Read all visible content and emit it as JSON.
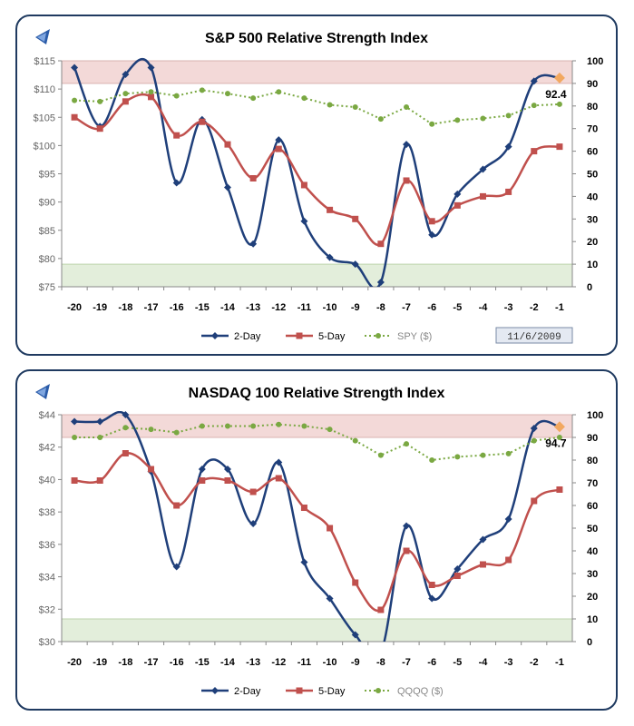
{
  "chart_data": [
    {
      "type": "line",
      "title": "S&P 500 Relative Strength Index",
      "categories": [
        "-20",
        "-19",
        "-18",
        "-17",
        "-16",
        "-15",
        "-14",
        "-13",
        "-12",
        "-11",
        "-10",
        "-9",
        "-8",
        "-7",
        "-6",
        "-5",
        "-4",
        "-3",
        "-2",
        "-1"
      ],
      "y_left_ticks": [
        "$75",
        "$80",
        "$85",
        "$90",
        "$95",
        "$100",
        "$105",
        "$110",
        "$115"
      ],
      "y_left_range": [
        75,
        115
      ],
      "y_right_ticks": [
        "0",
        "10",
        "20",
        "30",
        "40",
        "50",
        "60",
        "70",
        "80",
        "90",
        "100"
      ],
      "y_right_range": [
        0,
        100
      ],
      "overbought_band": [
        90,
        100
      ],
      "oversold_band": [
        0,
        10
      ],
      "series": [
        {
          "name": "2-Day",
          "axis": "right",
          "color": "#1f3f7a",
          "marker": "diamond",
          "values": [
            97,
            71,
            94,
            97,
            46,
            74,
            44,
            19,
            65,
            29,
            13,
            10,
            2,
            63,
            23,
            41,
            52,
            62,
            91,
            92.4
          ]
        },
        {
          "name": "5-Day",
          "axis": "right",
          "color": "#c0504d",
          "marker": "square",
          "values": [
            75,
            70,
            82,
            84,
            67,
            73,
            63,
            48,
            61,
            45,
            34,
            30,
            19,
            47,
            29,
            36,
            40,
            42,
            60,
            62
          ]
        },
        {
          "name": "SPY ($)",
          "axis": "left",
          "color": "#7aa842",
          "marker": "circle",
          "dotted": true,
          "values": [
            108.0,
            107.8,
            109.2,
            109.5,
            108.8,
            109.8,
            109.2,
            108.4,
            109.5,
            108.4,
            107.2,
            106.8,
            104.7,
            106.8,
            103.8,
            104.5,
            104.8,
            105.3,
            107.1,
            107.3
          ]
        }
      ],
      "last_value_label": "92.4",
      "date": "11/6/2009"
    },
    {
      "type": "line",
      "title": "NASDAQ 100 Relative Strength Index",
      "categories": [
        "-20",
        "-19",
        "-18",
        "-17",
        "-16",
        "-15",
        "-14",
        "-13",
        "-12",
        "-11",
        "-10",
        "-9",
        "-8",
        "-7",
        "-6",
        "-5",
        "-4",
        "-3",
        "-2",
        "-1"
      ],
      "y_left_ticks": [
        "$30",
        "$32",
        "$34",
        "$36",
        "$38",
        "$40",
        "$42",
        "$44"
      ],
      "y_left_range": [
        30,
        44
      ],
      "y_right_ticks": [
        "0",
        "10",
        "20",
        "30",
        "40",
        "50",
        "60",
        "70",
        "80",
        "90",
        "100"
      ],
      "y_right_range": [
        0,
        100
      ],
      "overbought_band": [
        90,
        100
      ],
      "oversold_band": [
        0,
        10
      ],
      "series": [
        {
          "name": "2-Day",
          "axis": "right",
          "color": "#1f3f7a",
          "marker": "diamond",
          "values": [
            97,
            97,
            100,
            75,
            33,
            76,
            76,
            52,
            79,
            35,
            19,
            3,
            -5,
            51,
            19,
            32,
            45,
            54,
            94,
            94.7
          ]
        },
        {
          "name": "5-Day",
          "axis": "right",
          "color": "#c0504d",
          "marker": "square",
          "values": [
            71,
            71,
            83,
            76,
            60,
            71,
            71,
            66,
            72,
            59,
            50,
            26,
            14,
            40,
            25,
            29,
            34,
            36,
            62,
            67
          ]
        },
        {
          "name": "QQQQ ($)",
          "axis": "left",
          "color": "#7aa842",
          "marker": "circle",
          "dotted": true,
          "values": [
            42.6,
            42.6,
            43.2,
            43.1,
            42.9,
            43.3,
            43.3,
            43.3,
            43.4,
            43.3,
            43.1,
            42.4,
            41.5,
            42.2,
            41.2,
            41.4,
            41.5,
            41.6,
            42.4,
            42.6
          ]
        }
      ],
      "last_value_label": "94.7"
    }
  ]
}
